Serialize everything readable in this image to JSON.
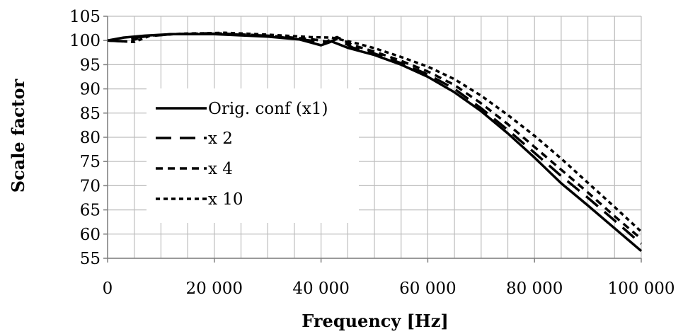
{
  "chart_data": {
    "type": "line",
    "xlabel": "Frequency [Hz]",
    "ylabel": "Scale factor",
    "xlim": [
      0,
      100000
    ],
    "ylim": [
      55,
      105
    ],
    "x_major_ticks": [
      0,
      20000,
      40000,
      60000,
      80000,
      100000
    ],
    "x_tick_labels": [
      "0",
      "20 000",
      "40 000",
      "60 000",
      "80 000",
      "100 000"
    ],
    "x_minor_step": 5000,
    "y_ticks": [
      55,
      60,
      65,
      70,
      75,
      80,
      85,
      90,
      95,
      100,
      105
    ],
    "y_tick_labels": [
      "55",
      "60",
      "65",
      "70",
      "75",
      "80",
      "85",
      "90",
      "95",
      "100",
      "105"
    ],
    "grid": true,
    "legend_position": "left-center",
    "series": [
      {
        "name": "Orig. conf (x1)",
        "dash": "solid",
        "points": [
          [
            0,
            100
          ],
          [
            3000,
            100.6
          ],
          [
            7000,
            101
          ],
          [
            12000,
            101.3
          ],
          [
            20000,
            101.3
          ],
          [
            30000,
            100.8
          ],
          [
            36000,
            100.2
          ],
          [
            40000,
            99
          ],
          [
            42000,
            99.8
          ],
          [
            45000,
            98.5
          ],
          [
            50000,
            97
          ],
          [
            55000,
            95
          ],
          [
            60000,
            92.5
          ],
          [
            65000,
            89.3
          ],
          [
            70000,
            85.4
          ],
          [
            75000,
            80.8
          ],
          [
            80000,
            75.8
          ],
          [
            85000,
            70.5
          ],
          [
            90000,
            65.9
          ],
          [
            95000,
            61.2
          ],
          [
            100000,
            56.5
          ]
        ]
      },
      {
        "name": "x 2",
        "dash": "long-dash",
        "points": [
          [
            0,
            100
          ],
          [
            3000,
            99.8
          ],
          [
            6000,
            100.7
          ],
          [
            12000,
            101.3
          ],
          [
            20000,
            101.4
          ],
          [
            30000,
            101
          ],
          [
            38000,
            100
          ],
          [
            41000,
            99.5
          ],
          [
            43000,
            100.3
          ],
          [
            46000,
            98.5
          ],
          [
            50000,
            97.3
          ],
          [
            55000,
            95.3
          ],
          [
            60000,
            93
          ],
          [
            65000,
            90
          ],
          [
            70000,
            86
          ],
          [
            75000,
            81.5
          ],
          [
            80000,
            76.8
          ],
          [
            85000,
            72
          ],
          [
            90000,
            67.5
          ],
          [
            95000,
            62.8
          ],
          [
            100000,
            58
          ]
        ]
      },
      {
        "name": "x 4",
        "dash": "short-dash",
        "points": [
          [
            0,
            100
          ],
          [
            4000,
            99.8
          ],
          [
            7000,
            100.9
          ],
          [
            12000,
            101.3
          ],
          [
            20000,
            101.5
          ],
          [
            30000,
            101
          ],
          [
            38000,
            100.3
          ],
          [
            41000,
            99.8
          ],
          [
            43000,
            100.7
          ],
          [
            46000,
            99
          ],
          [
            50000,
            97.7
          ],
          [
            55000,
            95.8
          ],
          [
            60000,
            93.6
          ],
          [
            65000,
            90.8
          ],
          [
            70000,
            87
          ],
          [
            75000,
            82.7
          ],
          [
            80000,
            78
          ],
          [
            85000,
            73.3
          ],
          [
            90000,
            68.6
          ],
          [
            95000,
            63.7
          ],
          [
            100000,
            59
          ]
        ]
      },
      {
        "name": "x 10",
        "dash": "dotted-dash",
        "points": [
          [
            0,
            100
          ],
          [
            5000,
            99.7
          ],
          [
            8000,
            101
          ],
          [
            14000,
            101.4
          ],
          [
            22000,
            101.6
          ],
          [
            30000,
            101.2
          ],
          [
            38000,
            100.7
          ],
          [
            42000,
            100.6
          ],
          [
            46000,
            99.6
          ],
          [
            50000,
            98.4
          ],
          [
            55000,
            96.6
          ],
          [
            60000,
            94.6
          ],
          [
            65000,
            92
          ],
          [
            70000,
            88.6
          ],
          [
            75000,
            84.6
          ],
          [
            80000,
            80.3
          ],
          [
            85000,
            75.6
          ],
          [
            90000,
            70.6
          ],
          [
            95000,
            65.6
          ],
          [
            100000,
            60.5
          ]
        ]
      }
    ]
  }
}
